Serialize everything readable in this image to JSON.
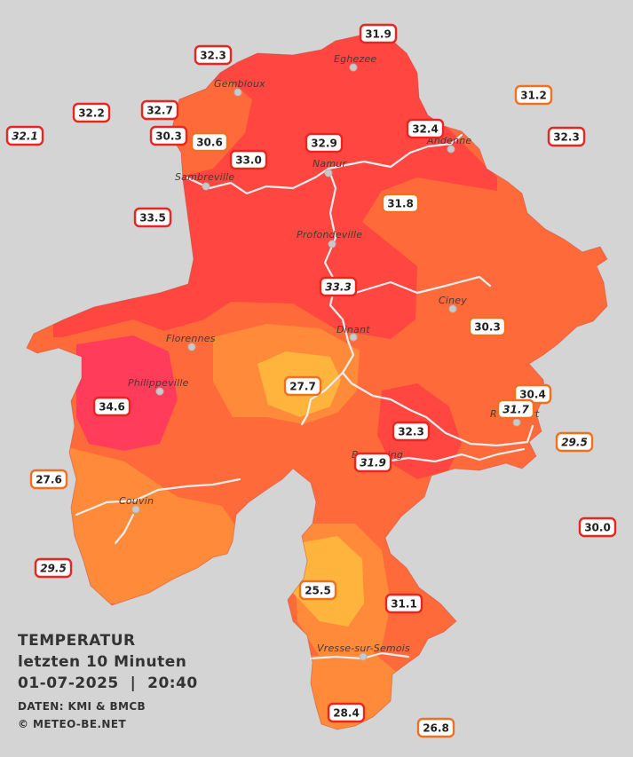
{
  "legend": {
    "title": "TEMPERATUR",
    "subtitle": "letzten 10 Minuten",
    "datetime": "01-07-2025  |  20:40",
    "source": "DATEN: KMI & BMCB",
    "copyright": "© METEO-BE.NET"
  },
  "colors": {
    "background": "#d4d4d4",
    "zone_very_hot": "#ff3d5a",
    "zone_hot": "#ff4640",
    "zone_warm": "#ff6a3a",
    "zone_mild": "#ff8a3a",
    "zone_cool": "#ffb43e",
    "river": "#eeeeee",
    "box_red": "#e8251e",
    "box_orange": "#f07020"
  },
  "cities": [
    {
      "name": "Eghezee"
    },
    {
      "name": "Gembloux"
    },
    {
      "name": "Andenne"
    },
    {
      "name": "Namur"
    },
    {
      "name": "Sambreville"
    },
    {
      "name": "Profondeville"
    },
    {
      "name": "Ciney"
    },
    {
      "name": "Dinant"
    },
    {
      "name": "Florennes"
    },
    {
      "name": "Philippeville"
    },
    {
      "name": "Rochefort"
    },
    {
      "name": "Beauraing"
    },
    {
      "name": "Couvin"
    },
    {
      "name": "Vresse-sur-Semois"
    }
  ],
  "stations": [
    {
      "value": "31.9",
      "tier": "red",
      "italic": false
    },
    {
      "value": "32.3",
      "tier": "red",
      "italic": false
    },
    {
      "value": "31.2",
      "tier": "orange",
      "italic": false
    },
    {
      "value": "32.2",
      "tier": "red",
      "italic": false
    },
    {
      "value": "32.7",
      "tier": "red",
      "italic": false
    },
    {
      "value": "32.1",
      "tier": "red",
      "italic": true
    },
    {
      "value": "30.3",
      "tier": "red",
      "italic": false
    },
    {
      "value": "30.6",
      "tier": "orange",
      "italic": false
    },
    {
      "value": "32.4",
      "tier": "red",
      "italic": false
    },
    {
      "value": "32.3",
      "tier": "red",
      "italic": false
    },
    {
      "value": "32.9",
      "tier": "red",
      "italic": false
    },
    {
      "value": "33.0",
      "tier": "red",
      "italic": false
    },
    {
      "value": "31.8",
      "tier": "orange",
      "italic": false
    },
    {
      "value": "33.5",
      "tier": "red",
      "italic": false
    },
    {
      "value": "33.3",
      "tier": "red",
      "italic": true
    },
    {
      "value": "30.3",
      "tier": "orange",
      "italic": false
    },
    {
      "value": "27.7",
      "tier": "orange",
      "italic": false
    },
    {
      "value": "30.4",
      "tier": "orange",
      "italic": false
    },
    {
      "value": "34.6",
      "tier": "red",
      "italic": false
    },
    {
      "value": "31.7",
      "tier": "orange",
      "italic": true
    },
    {
      "value": "32.3",
      "tier": "red",
      "italic": false
    },
    {
      "value": "29.5",
      "tier": "orange",
      "italic": true
    },
    {
      "value": "31.9",
      "tier": "red",
      "italic": true
    },
    {
      "value": "27.6",
      "tier": "orange",
      "italic": false
    },
    {
      "value": "30.0",
      "tier": "red",
      "italic": false
    },
    {
      "value": "29.5",
      "tier": "red",
      "italic": true
    },
    {
      "value": "25.5",
      "tier": "orange",
      "italic": false
    },
    {
      "value": "31.1",
      "tier": "red",
      "italic": false
    },
    {
      "value": "28.4",
      "tier": "red",
      "italic": false
    },
    {
      "value": "26.8",
      "tier": "orange",
      "italic": false
    }
  ]
}
